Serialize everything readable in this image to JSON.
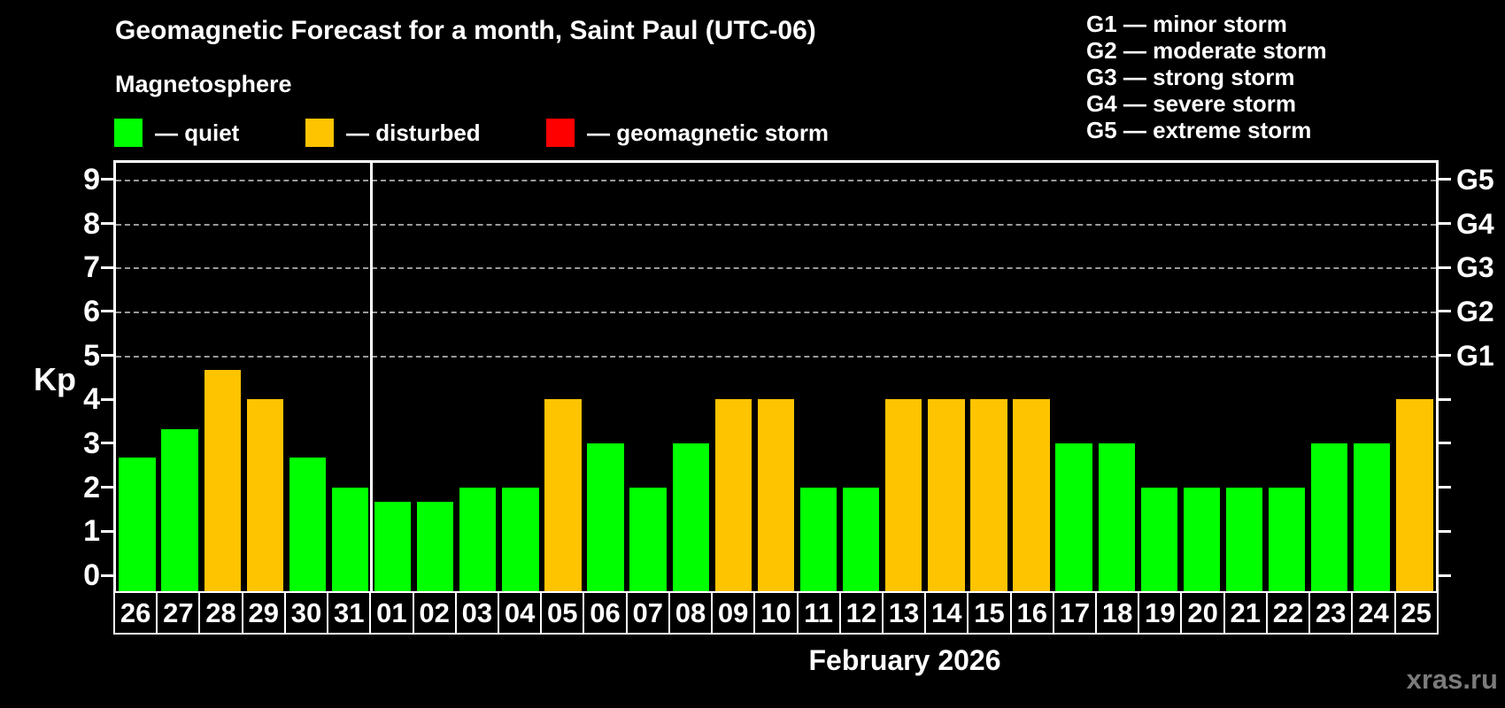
{
  "title": "Geomagnetic Forecast for a month, Saint Paul (UTC-06)",
  "subtitle": "Magnetosphere",
  "legend": {
    "items": [
      {
        "name": "quiet",
        "label": "— quiet",
        "color": "#00ff00"
      },
      {
        "name": "disturbed",
        "label": "— disturbed",
        "color": "#ffc400"
      },
      {
        "name": "storm",
        "label": "— geomagnetic storm",
        "color": "#ff0000"
      }
    ]
  },
  "storm_scale_legend": [
    "G1 — minor storm",
    "G2 — moderate storm",
    "G3 — strong storm",
    "G4 — severe storm",
    "G5 — extreme storm"
  ],
  "axis": {
    "y_label": "Kp",
    "y_ticks": [
      0,
      1,
      2,
      3,
      4,
      5,
      6,
      7,
      8,
      9
    ],
    "right_scale": [
      {
        "label": "G1",
        "kp": 5
      },
      {
        "label": "G2",
        "kp": 6
      },
      {
        "label": "G3",
        "kp": 7
      },
      {
        "label": "G4",
        "kp": 8
      },
      {
        "label": "G5",
        "kp": 9
      }
    ]
  },
  "x_axis_title": "February 2026",
  "watermark": "xras.ru",
  "chart_data": {
    "type": "bar",
    "title": "Geomagnetic Forecast for a month, Saint Paul (UTC-06)",
    "ylabel": "Kp",
    "ylim": [
      0,
      9
    ],
    "gridlines_at": [
      5,
      6,
      7,
      8,
      9
    ],
    "legend_position": "top",
    "categories": [
      "26",
      "27",
      "28",
      "29",
      "30",
      "31",
      "01",
      "02",
      "03",
      "04",
      "05",
      "06",
      "07",
      "08",
      "09",
      "10",
      "11",
      "12",
      "13",
      "14",
      "15",
      "16",
      "17",
      "18",
      "19",
      "20",
      "21",
      "22",
      "23",
      "24",
      "25"
    ],
    "values": [
      2.67,
      3.33,
      4.67,
      4,
      2.67,
      2,
      1.67,
      1.67,
      2,
      2,
      4,
      3,
      2,
      3,
      4,
      4,
      2,
      2,
      4,
      4,
      4,
      4,
      3,
      3,
      2,
      2,
      2,
      2,
      3,
      3,
      4
    ],
    "statuses": [
      "quiet",
      "quiet",
      "disturbed",
      "disturbed",
      "quiet",
      "quiet",
      "quiet",
      "quiet",
      "quiet",
      "quiet",
      "disturbed",
      "quiet",
      "quiet",
      "quiet",
      "disturbed",
      "disturbed",
      "quiet",
      "quiet",
      "disturbed",
      "disturbed",
      "disturbed",
      "disturbed",
      "quiet",
      "quiet",
      "quiet",
      "quiet",
      "quiet",
      "quiet",
      "quiet",
      "quiet",
      "disturbed"
    ],
    "status_colors": {
      "quiet": "#00ff00",
      "disturbed": "#ffc400",
      "storm": "#ff0000"
    },
    "month_separator_after_index": 5
  }
}
